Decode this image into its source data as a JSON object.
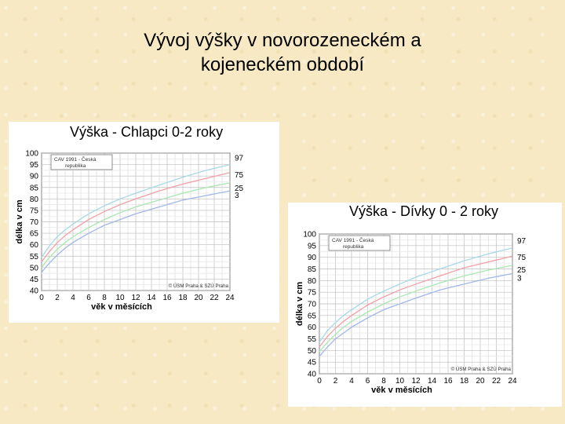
{
  "slide": {
    "title_line1": "Vývoj výšky v novorozeneckém a",
    "title_line2": "kojeneckém období"
  },
  "chart_data": [
    {
      "type": "line",
      "title": "Výška - Chlapci 0-2 roky",
      "xlabel": "věk v měsících",
      "ylabel": "délka v cm",
      "xlim": [
        0,
        24
      ],
      "ylim": [
        40,
        100
      ],
      "xticks": [
        0,
        2,
        4,
        6,
        8,
        10,
        12,
        14,
        16,
        18,
        20,
        22,
        24
      ],
      "yticks": [
        40,
        45,
        50,
        55,
        60,
        65,
        70,
        75,
        80,
        85,
        90,
        95,
        100
      ],
      "grid": true,
      "legend_box": {
        "line1": "CAV 1991 - Česká",
        "line2": "republika",
        "placement": "top-left"
      },
      "credit": "© ÚSM Praha & SZÚ Praha",
      "colors": {
        "p97": "#a8d8e8",
        "p75": "#f0a0a8",
        "p25": "#a8e8b0",
        "p3": "#a0b8e8"
      },
      "x": [
        0,
        1,
        2,
        3,
        4,
        6,
        8,
        10,
        12,
        15,
        18,
        21,
        24
      ],
      "series": [
        {
          "name": "97",
          "values": [
            54.5,
            59.5,
            63.5,
            66.5,
            69.0,
            73.5,
            77.0,
            80.0,
            82.5,
            86.0,
            89.5,
            92.5,
            95.0
          ]
        },
        {
          "name": "75",
          "values": [
            52.5,
            57.0,
            61.0,
            64.0,
            66.5,
            71.0,
            74.5,
            77.5,
            80.0,
            83.5,
            86.5,
            89.0,
            91.5
          ]
        },
        {
          "name": "25",
          "values": [
            50.0,
            54.5,
            58.0,
            61.0,
            63.5,
            67.5,
            71.0,
            74.0,
            76.5,
            79.5,
            82.5,
            85.0,
            87.0
          ]
        },
        {
          "name": "3",
          "values": [
            48.0,
            52.0,
            55.5,
            58.5,
            61.0,
            65.0,
            68.5,
            71.0,
            73.5,
            76.5,
            79.5,
            81.5,
            83.5
          ]
        }
      ]
    },
    {
      "type": "line",
      "title": "Výška - Dívky  0 - 2 roky",
      "xlabel": "věk v měsících",
      "ylabel": "délka v cm",
      "xlim": [
        0,
        24
      ],
      "ylim": [
        40,
        100
      ],
      "xticks": [
        0,
        2,
        4,
        6,
        8,
        10,
        12,
        14,
        16,
        18,
        20,
        22,
        24
      ],
      "yticks": [
        40,
        45,
        50,
        55,
        60,
        65,
        70,
        75,
        80,
        85,
        90,
        95,
        100
      ],
      "grid": true,
      "legend_box": {
        "line1": "CAV 1991 - Česká",
        "line2": "republika",
        "placement": "top-left"
      },
      "credit": "© ÚSM Praha & SZÚ Praha",
      "colors": {
        "p97": "#a8d8e8",
        "p75": "#f0a0a8",
        "p25": "#a8e8b0",
        "p3": "#a0b8e8"
      },
      "x": [
        0,
        1,
        2,
        3,
        4,
        6,
        8,
        10,
        12,
        15,
        18,
        21,
        24
      ],
      "series": [
        {
          "name": "97",
          "values": [
            53.5,
            58.5,
            62.0,
            65.0,
            67.5,
            72.0,
            75.5,
            78.5,
            81.5,
            85.0,
            88.5,
            91.5,
            94.0
          ]
        },
        {
          "name": "75",
          "values": [
            51.5,
            56.0,
            59.5,
            62.5,
            65.0,
            69.5,
            73.0,
            76.0,
            78.5,
            82.0,
            85.5,
            88.0,
            90.5
          ]
        },
        {
          "name": "25",
          "values": [
            49.5,
            53.5,
            57.0,
            60.0,
            62.5,
            66.5,
            70.0,
            73.0,
            75.5,
            79.0,
            82.0,
            84.5,
            86.5
          ]
        },
        {
          "name": "3",
          "values": [
            47.5,
            51.5,
            55.0,
            57.5,
            60.0,
            64.0,
            67.5,
            70.0,
            72.5,
            76.0,
            78.5,
            81.0,
            83.0
          ]
        }
      ]
    }
  ]
}
